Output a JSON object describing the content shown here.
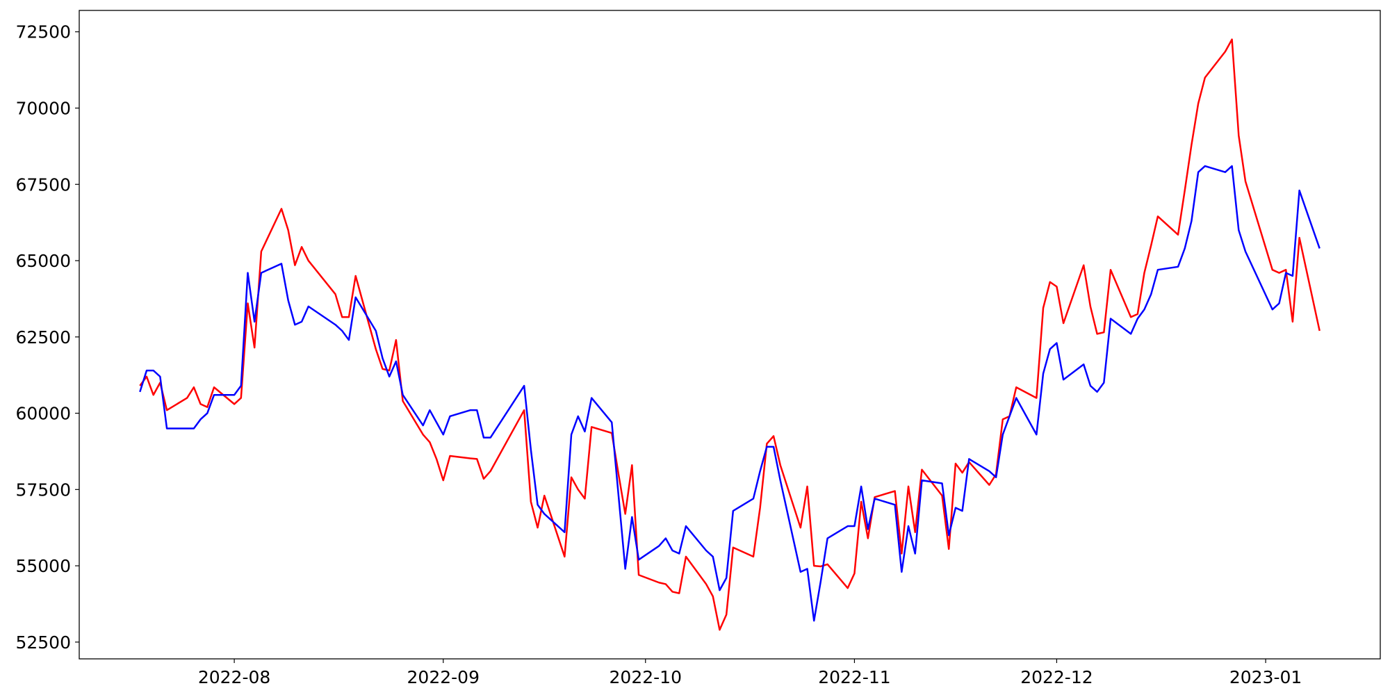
{
  "chart_data": {
    "type": "line",
    "x": [
      -14,
      -13,
      -12,
      -11,
      -10,
      -7,
      -6,
      -5,
      -4,
      -3,
      0,
      1,
      2,
      3,
      4,
      7,
      8,
      9,
      10,
      11,
      15,
      16,
      17,
      18,
      21,
      22,
      23,
      24,
      25,
      28,
      29,
      30,
      31,
      32,
      35,
      36,
      37,
      38,
      43,
      44,
      45,
      46,
      49,
      50,
      51,
      52,
      53,
      56,
      57,
      58,
      59,
      60,
      63,
      64,
      65,
      66,
      67,
      70,
      71,
      72,
      73,
      74,
      77,
      78,
      79,
      80,
      81,
      84,
      85,
      86,
      87,
      88,
      91,
      92,
      93,
      94,
      95,
      98,
      99,
      100,
      101,
      102,
      105,
      106,
      107,
      108,
      109,
      112,
      113,
      114,
      115,
      116,
      119,
      120,
      121,
      122,
      123,
      126,
      127,
      128,
      129,
      130,
      133,
      134,
      135,
      136,
      137,
      140,
      141,
      142,
      143,
      144,
      147,
      148,
      149,
      150,
      154,
      155,
      156,
      157,
      158,
      161
    ],
    "series": [
      {
        "color": "#ff0000",
        "values": [
          60900,
          61200,
          60600,
          61000,
          60100,
          60500,
          60850,
          60300,
          60200,
          60850,
          60300,
          60500,
          63600,
          62150,
          65300,
          66700,
          66000,
          64850,
          65450,
          65000,
          63900,
          63150,
          63150,
          64500,
          62100,
          61450,
          61400,
          62400,
          60400,
          59300,
          59050,
          58500,
          57800,
          58600,
          58520,
          58500,
          57850,
          58100,
          60100,
          57100,
          56250,
          57300,
          55300,
          57900,
          57500,
          57200,
          59550,
          59350,
          58000,
          56700,
          58300,
          54700,
          54450,
          54400,
          54150,
          54100,
          55300,
          54400,
          54000,
          52900,
          53400,
          55600,
          55300,
          56900,
          59000,
          59250,
          58300,
          56250,
          57600,
          55000,
          54980,
          55050,
          54270,
          54750,
          57100,
          55900,
          57250,
          57450,
          55400,
          57600,
          56100,
          58150,
          57300,
          55550,
          58350,
          58050,
          58400,
          57650,
          58000,
          59800,
          59900,
          60850,
          60500,
          63450,
          64300,
          64150,
          62950,
          64850,
          63500,
          62600,
          62650,
          64700,
          63150,
          63250,
          64600,
          65500,
          66450,
          65850,
          67300,
          68800,
          70150,
          71000,
          71850,
          72250,
          69100,
          67600,
          64700,
          64600,
          64700,
          63000,
          65750,
          62700
        ]
      },
      {
        "color": "#0000ff",
        "values": [
          60700,
          61400,
          61400,
          61200,
          59500,
          59500,
          59500,
          59800,
          60000,
          60600,
          60600,
          60900,
          64600,
          63000,
          64600,
          64900,
          63700,
          62900,
          63000,
          63500,
          62900,
          62700,
          62400,
          63800,
          62700,
          61800,
          61200,
          61700,
          60600,
          59600,
          60100,
          59700,
          59300,
          59900,
          60100,
          60100,
          59200,
          59200,
          60900,
          58800,
          57000,
          56700,
          56100,
          59300,
          59900,
          59400,
          60500,
          59700,
          57300,
          54900,
          56600,
          55200,
          55650,
          55900,
          55500,
          55400,
          56300,
          55500,
          55300,
          54200,
          54600,
          56800,
          57200,
          58100,
          58900,
          58900,
          57800,
          54800,
          54900,
          53200,
          54500,
          55900,
          56300,
          56300,
          57600,
          56200,
          57200,
          57000,
          54800,
          56300,
          55400,
          57800,
          57700,
          56000,
          56900,
          56800,
          58500,
          58100,
          57900,
          59300,
          59900,
          60500,
          59300,
          61300,
          62100,
          62300,
          61100,
          61600,
          60900,
          60700,
          61000,
          63100,
          62600,
          63100,
          63400,
          63900,
          64700,
          64800,
          65400,
          66300,
          67900,
          68100,
          67900,
          68100,
          66000,
          65300,
          63400,
          63600,
          64600,
          64500,
          67300,
          65400
        ]
      }
    ],
    "xlim": [
      -23,
      170
    ],
    "xticks": [
      {
        "value": 0,
        "label": "2022-08"
      },
      {
        "value": 31,
        "label": "2022-09"
      },
      {
        "value": 61,
        "label": "2022-10"
      },
      {
        "value": 92,
        "label": "2022-11"
      },
      {
        "value": 122,
        "label": "2022-12"
      },
      {
        "value": 153,
        "label": "2023-01"
      }
    ],
    "ylim": [
      51950,
      73200
    ],
    "yticks": [
      52500,
      55000,
      57500,
      60000,
      62500,
      65000,
      67500,
      70000,
      72500
    ]
  }
}
